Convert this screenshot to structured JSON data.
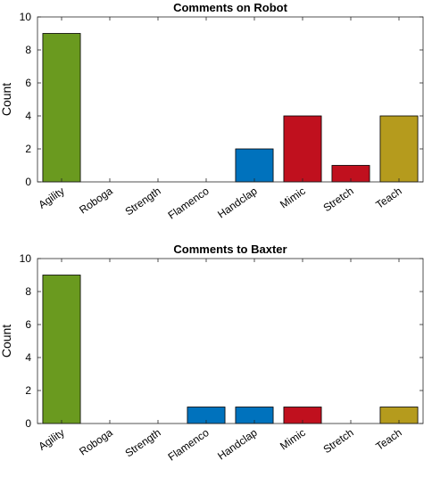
{
  "chart_data": [
    {
      "type": "bar",
      "title": "Comments on Robot",
      "xlabel": "",
      "ylabel": "Count",
      "categories": [
        "Agility",
        "Roboga",
        "Strength",
        "Flamenco",
        "Handclap",
        "Mimic",
        "Stretch",
        "Teach"
      ],
      "values": [
        9,
        0,
        0,
        0,
        2,
        4,
        1,
        4
      ],
      "colors": [
        "#6a9a1f",
        "#6a9a1f",
        "#6a9a1f",
        "#0072bd",
        "#0072bd",
        "#c0101e",
        "#c0101e",
        "#b59b1d"
      ],
      "ylim": [
        0,
        10
      ],
      "yticks": [
        0,
        2,
        4,
        6,
        8,
        10
      ],
      "grid": false
    },
    {
      "type": "bar",
      "title": "Comments to Baxter",
      "xlabel": "",
      "ylabel": "Count",
      "categories": [
        "Agility",
        "Roboga",
        "Strength",
        "Flamenco",
        "Handclap",
        "Mimic",
        "Stretch",
        "Teach"
      ],
      "values": [
        9,
        0,
        0,
        1,
        1,
        1,
        0,
        1
      ],
      "colors": [
        "#6a9a1f",
        "#6a9a1f",
        "#6a9a1f",
        "#0072bd",
        "#0072bd",
        "#c0101e",
        "#c0101e",
        "#b59b1d"
      ],
      "ylim": [
        0,
        10
      ],
      "yticks": [
        0,
        2,
        4,
        6,
        8,
        10
      ],
      "grid": false
    }
  ]
}
